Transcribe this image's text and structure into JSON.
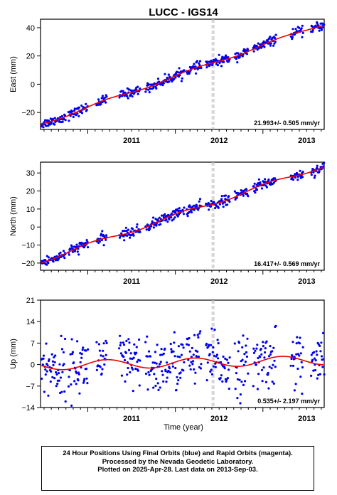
{
  "title": "LUCC - IGS14",
  "xlabel": "Time (year)",
  "caption": [
    "24 Hour Positions Using Final Orbits (blue) and Rapid Orbits (magenta).",
    "Processed by the Nevada Geodetic Laboratory.",
    "Plotted on 2025-Apr-28. Last data on 2013-Sep-03."
  ],
  "colors": {
    "data_points": "#0000ee",
    "model_line": "#ee0000",
    "event_lines": "#bbbbbb"
  },
  "chart_data": [
    {
      "type": "scatter",
      "panel": "east",
      "ylabel": "East (mm)",
      "xlim": [
        2010.46,
        2013.7
      ],
      "ylim": [
        -32,
        46
      ],
      "yticks": [
        -20,
        0,
        20,
        40
      ],
      "xticks": [
        2011,
        2012,
        2013
      ],
      "xtick_labels": [
        "2011",
        "2012",
        "2013"
      ],
      "grid": false,
      "event_lines": [
        2012.42,
        2012.44
      ],
      "annotation": "21.993+/- 0.505 mm/yr",
      "velocity_mm_per_yr": 21.993,
      "intercept_mm": -28.3,
      "series": [
        {
          "name": "blue",
          "segments": [
            [
              2010.47,
              2010.75
            ],
            [
              2010.78,
              2011.0
            ],
            [
              2011.1,
              2011.22
            ],
            [
              2011.36,
              2011.6
            ],
            [
              2011.66,
              2012.1
            ],
            [
              2012.13,
              2012.3
            ],
            [
              2012.35,
              2012.62
            ],
            [
              2012.68,
              2012.83
            ],
            [
              2012.89,
              2013.15
            ],
            [
              2013.32,
              2013.46
            ],
            [
              2013.55,
              2013.7
            ]
          ],
          "noise_mm": 1.6,
          "spacing_yr": 0.0055
        }
      ],
      "model_seasonal": {
        "amplitude_mm": 1.0,
        "phase": 0.3
      }
    },
    {
      "type": "scatter",
      "panel": "north",
      "ylabel": "North (mm)",
      "xlim": [
        2010.46,
        2013.7
      ],
      "ylim": [
        -24,
        36
      ],
      "yticks": [
        -20,
        -10,
        0,
        10,
        20,
        30
      ],
      "xticks": [
        2011,
        2012,
        2013
      ],
      "xtick_labels": [
        "2011",
        "2012",
        "2013"
      ],
      "grid": false,
      "event_lines": [
        2012.42,
        2012.44
      ],
      "annotation": "16.417+/- 0.569 mm/yr",
      "velocity_mm_per_yr": 16.417,
      "intercept_mm": -19.0,
      "series": [
        {
          "name": "blue",
          "segments": [
            [
              2010.47,
              2010.75
            ],
            [
              2010.78,
              2011.0
            ],
            [
              2011.1,
              2011.22
            ],
            [
              2011.36,
              2011.6
            ],
            [
              2011.66,
              2012.1
            ],
            [
              2012.13,
              2012.3
            ],
            [
              2012.35,
              2012.62
            ],
            [
              2012.68,
              2012.83
            ],
            [
              2012.89,
              2013.15
            ],
            [
              2013.32,
              2013.46
            ],
            [
              2013.55,
              2013.7
            ]
          ],
          "noise_mm": 1.4,
          "spacing_yr": 0.0055
        }
      ],
      "model_seasonal": {
        "amplitude_mm": 1.1,
        "phase": 1.2
      }
    },
    {
      "type": "scatter",
      "panel": "up",
      "ylabel": "Up (mm)",
      "xlim": [
        2010.46,
        2013.7
      ],
      "ylim": [
        -14,
        21
      ],
      "yticks": [
        -14,
        -7,
        0,
        7,
        14,
        21
      ],
      "xticks": [
        2011,
        2012,
        2013
      ],
      "xtick_labels": [
        "2011",
        "2012",
        "2013"
      ],
      "grid": false,
      "event_lines": [
        2012.42,
        2012.44
      ],
      "annotation": "0.535+/- 2.197 mm/yr",
      "velocity_mm_per_yr": 0.535,
      "intercept_mm": -0.3,
      "series": [
        {
          "name": "blue",
          "segments": [
            [
              2010.47,
              2010.75
            ],
            [
              2010.78,
              2011.0
            ],
            [
              2011.1,
              2011.22
            ],
            [
              2011.36,
              2011.6
            ],
            [
              2011.66,
              2012.1
            ],
            [
              2012.13,
              2012.3
            ],
            [
              2012.35,
              2012.62
            ],
            [
              2012.68,
              2012.83
            ],
            [
              2012.89,
              2013.15
            ],
            [
              2013.32,
              2013.46
            ],
            [
              2013.55,
              2013.7
            ]
          ],
          "noise_mm": 4.6,
          "spacing_yr": 0.0055
        }
      ],
      "model_seasonal": {
        "amplitude_mm": 1.5,
        "phase": 0.2
      }
    }
  ]
}
